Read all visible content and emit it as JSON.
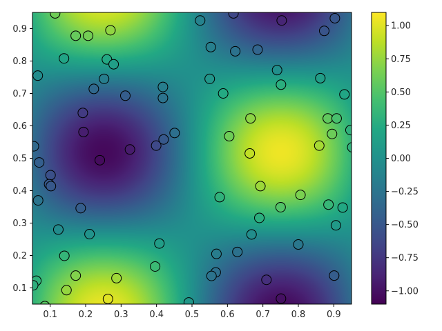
{
  "chart_data": {
    "type": "heatmap",
    "title": "",
    "xlabel": "",
    "ylabel": "",
    "xlim": [
      0.05,
      0.95
    ],
    "ylim": [
      0.05,
      0.95
    ],
    "grid": false,
    "colormap": "viridis",
    "colorbar": {
      "position": "right",
      "range": [
        -1.1,
        1.1
      ],
      "ticks": [
        1.0,
        0.75,
        0.5,
        0.25,
        0.0,
        -0.25,
        -0.5,
        -0.75,
        -1.0
      ],
      "tick_labels": [
        "1.00",
        "0.75",
        "0.50",
        "0.25",
        "0.00",
        "−0.25",
        "−0.50",
        "−0.75",
        "−1.00"
      ]
    },
    "x_ticks": [
      0.1,
      0.2,
      0.3,
      0.4,
      0.5,
      0.6,
      0.7,
      0.8,
      0.9
    ],
    "x_tick_labels": [
      "0.1",
      "0.2",
      "0.3",
      "0.4",
      "0.5",
      "0.6",
      "0.7",
      "0.8",
      "0.9"
    ],
    "y_ticks": [
      0.1,
      0.2,
      0.3,
      0.4,
      0.5,
      0.6,
      0.7,
      0.8,
      0.9
    ],
    "y_tick_labels": [
      "0.1",
      "0.2",
      "0.3",
      "0.4",
      "0.5",
      "0.6",
      "0.7",
      "0.8",
      "0.9"
    ],
    "field": {
      "description": "smooth field approx sin(2*pi*x)*sin(2*pi*y)-like pattern",
      "extrema": [
        {
          "x": 0.25,
          "y": 0.52,
          "value": -1.05
        },
        {
          "x": 0.72,
          "y": 0.52,
          "value": 0.95
        },
        {
          "x": 0.25,
          "y": 0.95,
          "value": 0.95
        },
        {
          "x": 0.75,
          "y": 0.95,
          "value": -1.0
        },
        {
          "x": 0.22,
          "y": 0.07,
          "value": 0.95
        },
        {
          "x": 0.74,
          "y": 0.08,
          "value": -1.0
        }
      ]
    },
    "scatter_points": [
      {
        "x": 0.114,
        "y": 0.947
      },
      {
        "x": 0.172,
        "y": 0.878
      },
      {
        "x": 0.207,
        "y": 0.878
      },
      {
        "x": 0.27,
        "y": 0.895
      },
      {
        "x": 0.139,
        "y": 0.808
      },
      {
        "x": 0.26,
        "y": 0.805
      },
      {
        "x": 0.279,
        "y": 0.79
      },
      {
        "x": 0.065,
        "y": 0.755
      },
      {
        "x": 0.252,
        "y": 0.745
      },
      {
        "x": 0.223,
        "y": 0.714
      },
      {
        "x": 0.312,
        "y": 0.693
      },
      {
        "x": 0.418,
        "y": 0.72
      },
      {
        "x": 0.418,
        "y": 0.686
      },
      {
        "x": 0.192,
        "y": 0.64
      },
      {
        "x": 0.194,
        "y": 0.581
      },
      {
        "x": 0.054,
        "y": 0.537
      },
      {
        "x": 0.451,
        "y": 0.578
      },
      {
        "x": 0.42,
        "y": 0.558
      },
      {
        "x": 0.399,
        "y": 0.539
      },
      {
        "x": 0.325,
        "y": 0.527
      },
      {
        "x": 0.24,
        "y": 0.494
      },
      {
        "x": 0.069,
        "y": 0.487
      },
      {
        "x": 0.101,
        "y": 0.448
      },
      {
        "x": 0.097,
        "y": 0.42
      },
      {
        "x": 0.102,
        "y": 0.414
      },
      {
        "x": 0.066,
        "y": 0.37
      },
      {
        "x": 0.186,
        "y": 0.346
      },
      {
        "x": 0.123,
        "y": 0.28
      },
      {
        "x": 0.211,
        "y": 0.266
      },
      {
        "x": 0.14,
        "y": 0.199
      },
      {
        "x": 0.408,
        "y": 0.237
      },
      {
        "x": 0.396,
        "y": 0.166
      },
      {
        "x": 0.172,
        "y": 0.138
      },
      {
        "x": 0.287,
        "y": 0.13
      },
      {
        "x": 0.061,
        "y": 0.122
      },
      {
        "x": 0.052,
        "y": 0.108
      },
      {
        "x": 0.146,
        "y": 0.093
      },
      {
        "x": 0.263,
        "y": 0.066
      },
      {
        "x": 0.085,
        "y": 0.044
      },
      {
        "x": 0.491,
        "y": 0.055
      },
      {
        "x": 0.523,
        "y": 0.925
      },
      {
        "x": 0.553,
        "y": 0.843
      },
      {
        "x": 0.617,
        "y": 0.947
      },
      {
        "x": 0.622,
        "y": 0.83
      },
      {
        "x": 0.685,
        "y": 0.835
      },
      {
        "x": 0.753,
        "y": 0.925
      },
      {
        "x": 0.873,
        "y": 0.893
      },
      {
        "x": 0.903,
        "y": 0.932
      },
      {
        "x": 0.55,
        "y": 0.745
      },
      {
        "x": 0.588,
        "y": 0.7
      },
      {
        "x": 0.74,
        "y": 0.772
      },
      {
        "x": 0.751,
        "y": 0.727
      },
      {
        "x": 0.862,
        "y": 0.747
      },
      {
        "x": 0.93,
        "y": 0.697
      },
      {
        "x": 0.665,
        "y": 0.623
      },
      {
        "x": 0.883,
        "y": 0.623
      },
      {
        "x": 0.908,
        "y": 0.623
      },
      {
        "x": 0.605,
        "y": 0.568
      },
      {
        "x": 0.895,
        "y": 0.575
      },
      {
        "x": 0.947,
        "y": 0.587
      },
      {
        "x": 0.859,
        "y": 0.539
      },
      {
        "x": 0.952,
        "y": 0.534
      },
      {
        "x": 0.663,
        "y": 0.515
      },
      {
        "x": 0.693,
        "y": 0.414
      },
      {
        "x": 0.578,
        "y": 0.38
      },
      {
        "x": 0.806,
        "y": 0.387
      },
      {
        "x": 0.75,
        "y": 0.349
      },
      {
        "x": 0.885,
        "y": 0.357
      },
      {
        "x": 0.925,
        "y": 0.348
      },
      {
        "x": 0.69,
        "y": 0.316
      },
      {
        "x": 0.906,
        "y": 0.293
      },
      {
        "x": 0.668,
        "y": 0.265
      },
      {
        "x": 0.569,
        "y": 0.205
      },
      {
        "x": 0.628,
        "y": 0.211
      },
      {
        "x": 0.8,
        "y": 0.234
      },
      {
        "x": 0.567,
        "y": 0.148
      },
      {
        "x": 0.555,
        "y": 0.137
      },
      {
        "x": 0.71,
        "y": 0.125
      },
      {
        "x": 0.901,
        "y": 0.138
      },
      {
        "x": 0.751,
        "y": 0.067
      }
    ]
  }
}
